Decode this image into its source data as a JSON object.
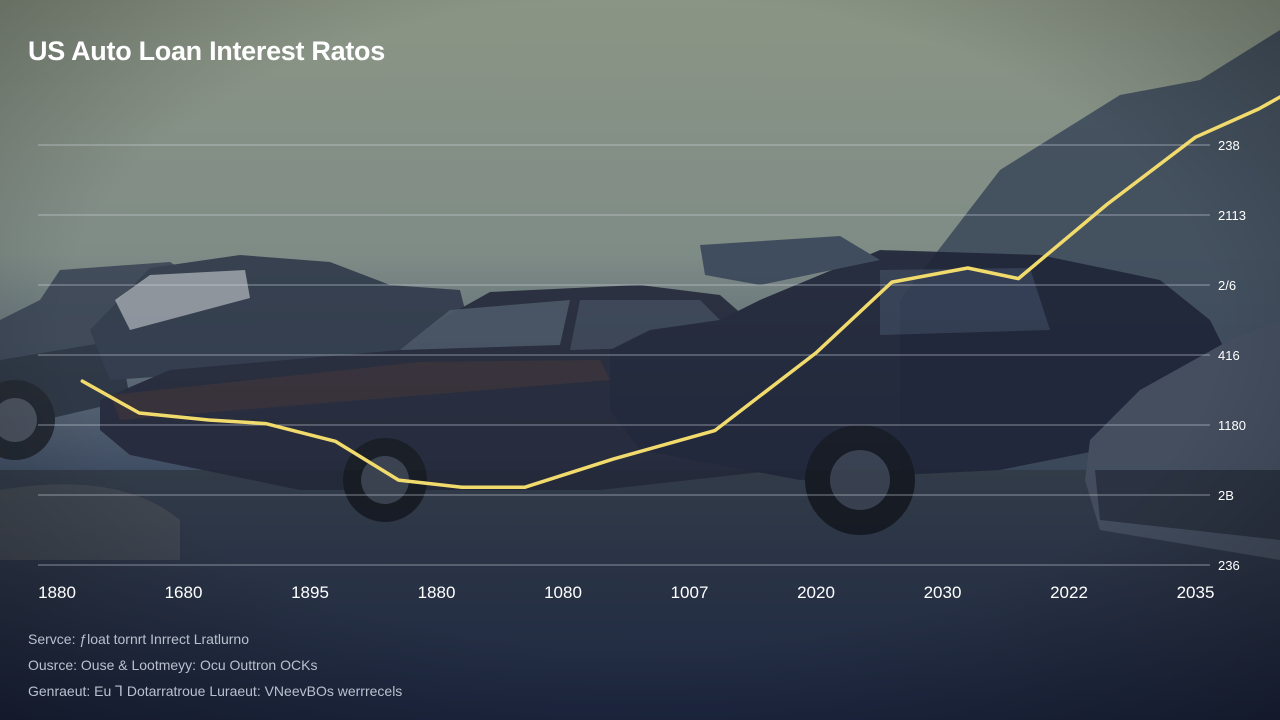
{
  "chart_data": {
    "type": "line",
    "title": "US Auto Loan Interest Ratos",
    "xlabel": "",
    "ylabel": "",
    "grid": true,
    "x_tick_labels": [
      "1880",
      "1680",
      "1895",
      "1880",
      "1080",
      "1007",
      "2020",
      "2030",
      "2022",
      "2035"
    ],
    "y_tick_labels": [
      "236",
      "2B",
      "1180",
      "416",
      "2/6",
      "2113",
      "238"
    ],
    "series": [
      {
        "color": "#f2db6d",
        "x": [
          0.2,
          0.65,
          1.2,
          1.65,
          2.2,
          2.7,
          3.2,
          3.7,
          4.4,
          5.2,
          6.0,
          6.6,
          7.2,
          7.6,
          8.3,
          9.0,
          9.5,
          10.0,
          10.3
        ],
        "y": [
          2.6,
          2.15,
          2.05,
          2.0,
          1.75,
          1.2,
          1.1,
          1.1,
          1.5,
          1.9,
          3.0,
          4.0,
          4.2,
          4.05,
          5.1,
          6.05,
          6.45,
          6.95,
          6.75
        ]
      }
    ]
  },
  "notes": [
    "Servce: ƒloat tornrt Inrrect Lratlurno",
    "Ousrce: Ouse & Lootmeyy: Ocu Outtron OCKs",
    "Genraeut: Eu Ꞁ Dotarratroue Luraeut: VNeevBOs werrrecels"
  ]
}
